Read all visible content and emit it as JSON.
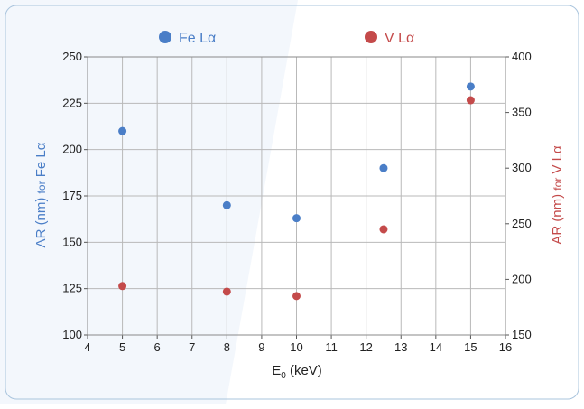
{
  "colors": {
    "fe": "#4a7ec7",
    "v": "#c44a4a",
    "frame_border": "#a9c4dd",
    "watermark": "#e9f0f9",
    "grid": "#b9b9b9"
  },
  "chart_data": {
    "type": "scatter",
    "title": "",
    "xlabel": "E0 (keV)",
    "xlabel_main": "E",
    "xlabel_sub": "0",
    "xlabel_unit": " (keV)",
    "xlim": [
      4,
      16
    ],
    "x_ticks": [
      4,
      5,
      6,
      7,
      8,
      9,
      10,
      11,
      12,
      13,
      14,
      15,
      16
    ],
    "grid": true,
    "legend_position": "top",
    "y_left": {
      "label_main": "AR (nm)",
      "label_small": "for",
      "label_end": "Fe Lα",
      "lim": [
        100,
        250
      ],
      "ticks": [
        100,
        125,
        150,
        175,
        200,
        225,
        250
      ]
    },
    "y_right": {
      "label_main": "AR (nm)",
      "label_small": "for",
      "label_end": "V Lα",
      "lim": [
        150,
        400
      ],
      "ticks": [
        150,
        200,
        250,
        300,
        350,
        400
      ]
    },
    "series": [
      {
        "name": "Fe Lα",
        "axis": "left",
        "color": "#4a7ec7",
        "x": [
          5,
          8,
          10,
          12.5,
          15
        ],
        "y": [
          210,
          170,
          163,
          190,
          234
        ]
      },
      {
        "name": "V Lα",
        "axis": "right",
        "color": "#c44a4a",
        "x": [
          5,
          8,
          10,
          12.5,
          15
        ],
        "y": [
          194,
          189,
          185,
          245,
          361
        ]
      }
    ]
  }
}
